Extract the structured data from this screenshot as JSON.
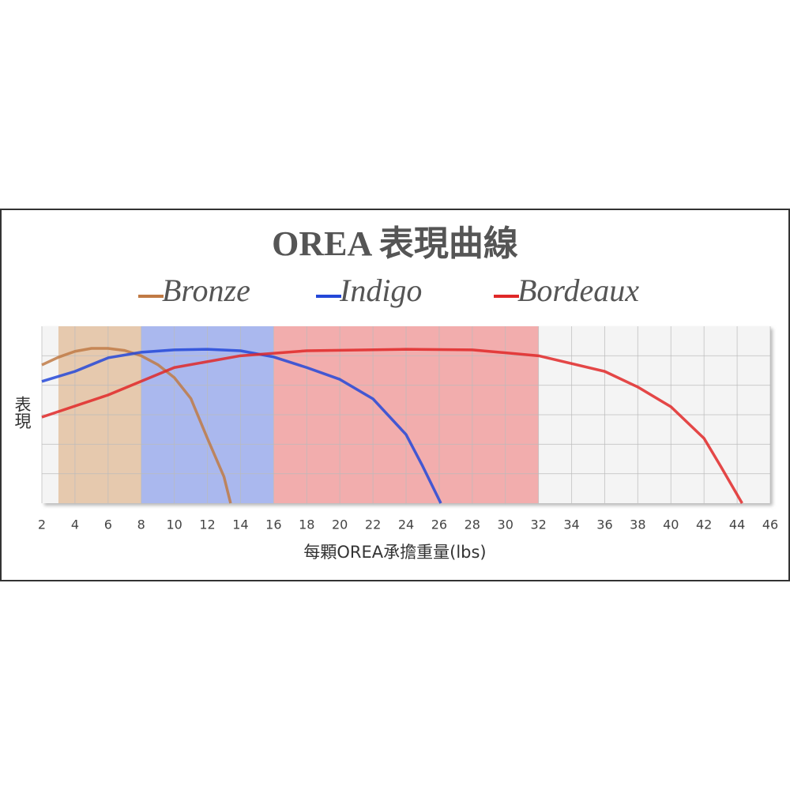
{
  "chart_data": {
    "type": "line",
    "title": "OREA 表現曲線",
    "xlabel": "每顆OREA承擔重量(lbs)",
    "ylabel": "表現",
    "xlim": [
      2,
      46
    ],
    "xticks": [
      2,
      4,
      6,
      8,
      10,
      12,
      14,
      16,
      18,
      20,
      22,
      24,
      26,
      28,
      30,
      32,
      34,
      36,
      38,
      40,
      42,
      44,
      46
    ],
    "ylim": [
      0,
      6
    ],
    "grid": true,
    "series": [
      {
        "name": "Bronze",
        "color": "#c07a45",
        "band_color": "#e6c9ae",
        "band": [
          3,
          8
        ],
        "x": [
          2,
          3,
          4,
          5,
          6,
          7,
          8,
          9,
          10,
          11,
          12,
          13,
          13.4
        ],
        "values": [
          4.69,
          4.95,
          5.15,
          5.25,
          5.25,
          5.18,
          5.0,
          4.7,
          4.26,
          3.55,
          2.2,
          0.9,
          0
        ]
      },
      {
        "name": "Indigo",
        "color": "#2448d8",
        "band_color": "#aab8ee",
        "band": [
          8,
          16
        ],
        "x": [
          2,
          4,
          6,
          8,
          10,
          12,
          14,
          16,
          18,
          20,
          22,
          24,
          25,
          26.1
        ],
        "values": [
          4.13,
          4.47,
          4.93,
          5.12,
          5.2,
          5.22,
          5.17,
          4.96,
          4.6,
          4.2,
          3.54,
          2.33,
          1.26,
          0
        ]
      },
      {
        "name": "Bordeaux",
        "color": "#e02828",
        "band_color": "#f2adad",
        "band": [
          16,
          32
        ],
        "x": [
          2,
          6,
          10,
          14,
          18,
          24,
          28,
          32,
          36,
          38,
          40,
          42,
          43,
          44.3
        ],
        "values": [
          2.92,
          3.67,
          4.6,
          5.0,
          5.17,
          5.22,
          5.2,
          5.0,
          4.47,
          3.94,
          3.27,
          2.2,
          1.26,
          0
        ]
      }
    ]
  }
}
